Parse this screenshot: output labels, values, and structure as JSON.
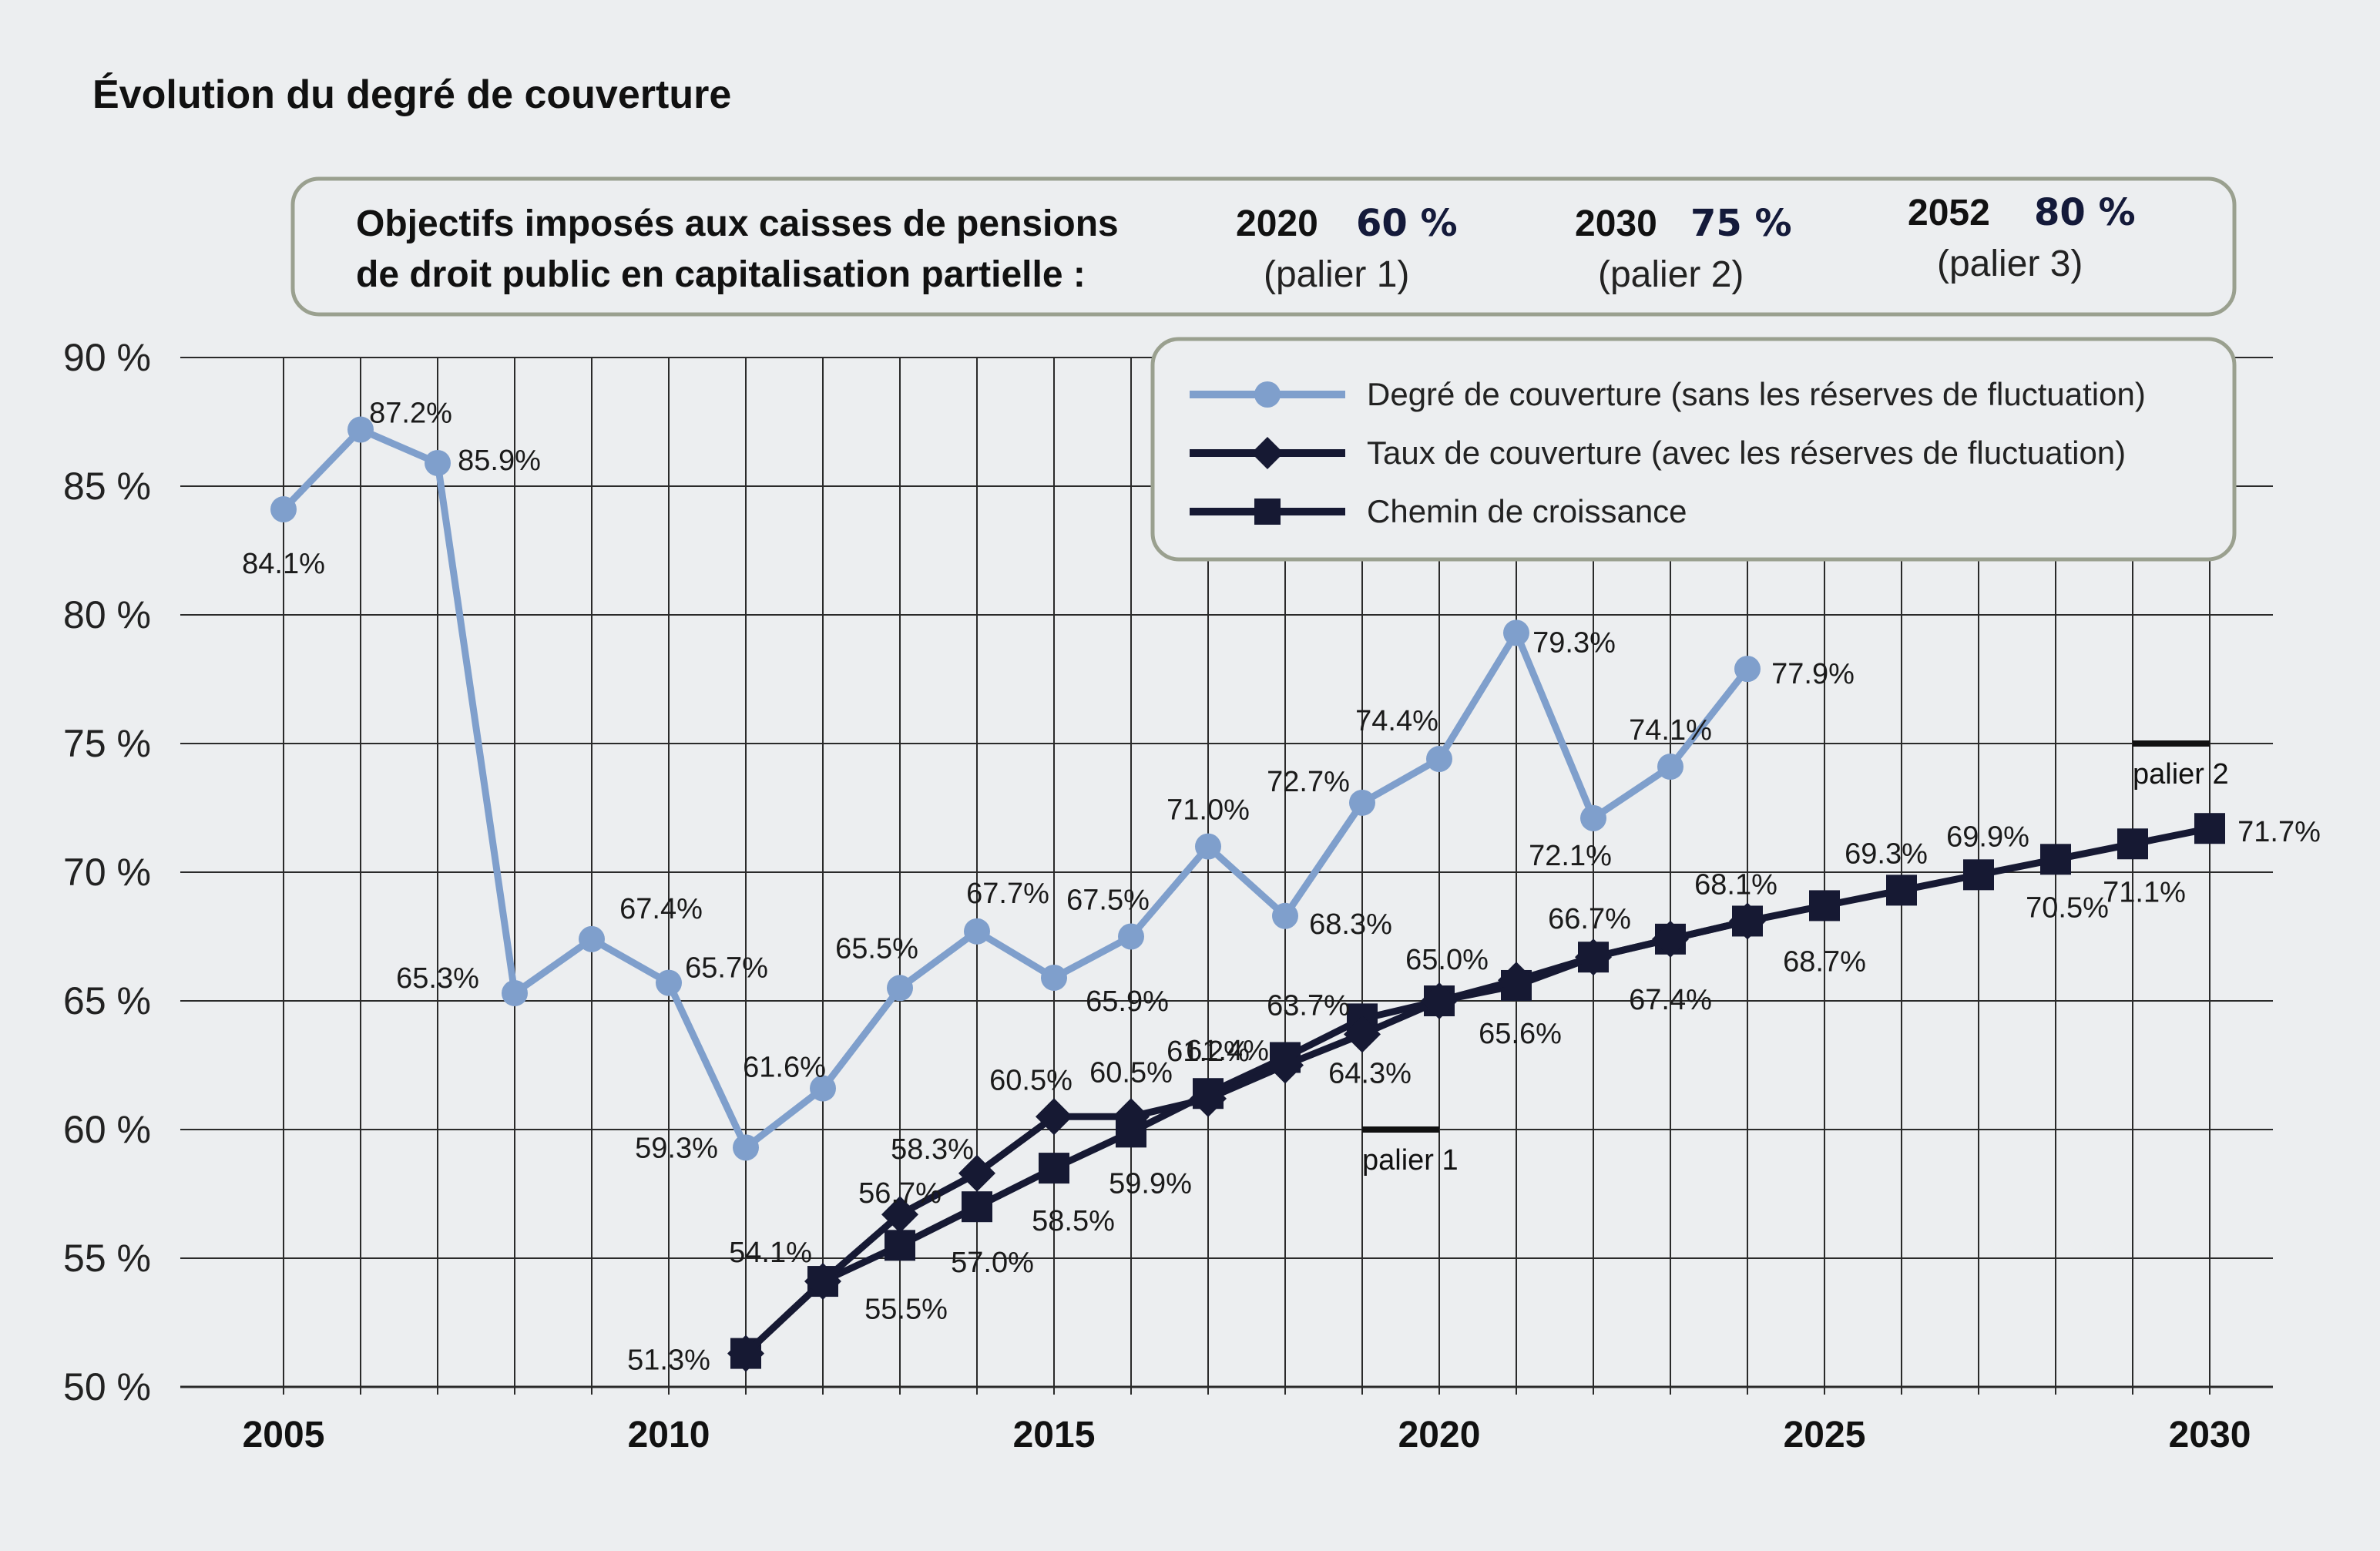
{
  "header": {
    "title": "Évolution du degré de couverture"
  },
  "objectives": {
    "text_line1": "Objectifs imposés aux caisses de pensions",
    "text_line2": "de droit public en capitalisation partielle :",
    "items": [
      {
        "year": "2020",
        "pct": "60 %",
        "sub": "(palier 1)"
      },
      {
        "year": "2030",
        "pct": "75 %",
        "sub": "(palier 2)"
      },
      {
        "year": "2052",
        "pct": "80 %",
        "sub": "(palier 3)"
      }
    ]
  },
  "legend": {
    "items": [
      {
        "label": "Degré de couverture (sans les réserves de fluctuation)",
        "marker": "circle",
        "color": "#7f9fcc"
      },
      {
        "label": "Taux de couverture (avec les réserves de fluctuation)",
        "marker": "diamond",
        "color": "#161933"
      },
      {
        "label": "Chemin de croissance",
        "marker": "square",
        "color": "#161933"
      }
    ]
  },
  "chart_data": {
    "type": "line",
    "title": "Évolution du degré de couverture",
    "xlabel": "",
    "ylabel": "",
    "xlim": [
      2004,
      2031
    ],
    "ylim": [
      50,
      90
    ],
    "grid": true,
    "legend_position": "top-right",
    "y_ticks": [
      {
        "value": 90,
        "label": "90 %"
      },
      {
        "value": 85,
        "label": "85 %"
      },
      {
        "value": 80,
        "label": "80 %"
      },
      {
        "value": 75,
        "label": "75 %"
      },
      {
        "value": 70,
        "label": "70 %"
      },
      {
        "value": 65,
        "label": "65 %"
      },
      {
        "value": 60,
        "label": "60 %"
      },
      {
        "value": 55,
        "label": "55 %"
      },
      {
        "value": 50,
        "label": "50 %"
      }
    ],
    "x_ticks": [
      {
        "value": 2005,
        "label": "2005"
      },
      {
        "value": 2010,
        "label": "2010"
      },
      {
        "value": 2015,
        "label": "2015"
      },
      {
        "value": 2020,
        "label": "2020"
      },
      {
        "value": 2025,
        "label": "2025"
      },
      {
        "value": 2030,
        "label": "2030"
      }
    ],
    "series": [
      {
        "name": "Degré de couverture (sans les réserves de fluctuation)",
        "color": "#7f9fcc",
        "marker": "circle",
        "points": [
          {
            "x": 2005,
            "y": 84.1,
            "label": "84.1%"
          },
          {
            "x": 2006,
            "y": 87.2,
            "label": "87.2%"
          },
          {
            "x": 2007,
            "y": 85.9,
            "label": "85.9%"
          },
          {
            "x": 2008,
            "y": 65.3,
            "label": "65.3%"
          },
          {
            "x": 2009,
            "y": 67.4,
            "label": "67.4%"
          },
          {
            "x": 2010,
            "y": 65.7,
            "label": "65.7%"
          },
          {
            "x": 2011,
            "y": 59.3,
            "label": "59.3%"
          },
          {
            "x": 2012,
            "y": 61.6,
            "label": "61.6%"
          },
          {
            "x": 2013,
            "y": 65.5,
            "label": "65.5%"
          },
          {
            "x": 2014,
            "y": 67.7,
            "label": "67.7%"
          },
          {
            "x": 2015,
            "y": 65.9,
            "label": "65.9%"
          },
          {
            "x": 2016,
            "y": 67.5,
            "label": "67.5%"
          },
          {
            "x": 2017,
            "y": 71.0,
            "label": "71.0%"
          },
          {
            "x": 2018,
            "y": 68.3,
            "label": "68.3%"
          },
          {
            "x": 2019,
            "y": 72.7,
            "label": "72.7%"
          },
          {
            "x": 2020,
            "y": 74.4,
            "label": "74.4%"
          },
          {
            "x": 2021,
            "y": 79.3,
            "label": "79.3%"
          },
          {
            "x": 2022,
            "y": 72.1,
            "label": "72.1%"
          },
          {
            "x": 2023,
            "y": 74.1,
            "label": "74.1%"
          },
          {
            "x": 2024,
            "y": 77.9,
            "label": "77.9%"
          }
        ]
      },
      {
        "name": "Taux de couverture (avec les réserves de fluctuation)",
        "color": "#161933",
        "marker": "diamond",
        "points": [
          {
            "x": 2011,
            "y": 51.3,
            "label": "51.3%"
          },
          {
            "x": 2012,
            "y": 54.1,
            "label": "54.1%"
          },
          {
            "x": 2013,
            "y": 56.7,
            "label": "56.7%"
          },
          {
            "x": 2014,
            "y": 58.3,
            "label": "58.3%"
          },
          {
            "x": 2015,
            "y": 60.5,
            "label": "60.5%"
          },
          {
            "x": 2016,
            "y": 60.5,
            "label": "60.5%"
          },
          {
            "x": 2017,
            "y": 61.2,
            "label": "61.2%"
          },
          {
            "x": 2018,
            "y": 62.5,
            "label": ""
          },
          {
            "x": 2019,
            "y": 63.7,
            "label": "63.7%"
          },
          {
            "x": 2020,
            "y": 65.0,
            "label": "65.0%"
          },
          {
            "x": 2021,
            "y": 65.8,
            "label": ""
          },
          {
            "x": 2022,
            "y": 66.7,
            "label": "66.7%"
          },
          {
            "x": 2023,
            "y": 67.4,
            "label": "67.4%"
          },
          {
            "x": 2024,
            "y": 68.1,
            "label": "68.1%"
          }
        ]
      },
      {
        "name": "Chemin de croissance",
        "color": "#161933",
        "marker": "square",
        "points": [
          {
            "x": 2011,
            "y": 51.3,
            "label": ""
          },
          {
            "x": 2012,
            "y": 54.1,
            "label": ""
          },
          {
            "x": 2013,
            "y": 55.5,
            "label": "55.5%"
          },
          {
            "x": 2014,
            "y": 57.0,
            "label": "57.0%"
          },
          {
            "x": 2015,
            "y": 58.5,
            "label": "58.5%"
          },
          {
            "x": 2016,
            "y": 59.9,
            "label": "59.9%"
          },
          {
            "x": 2017,
            "y": 61.4,
            "label": "61.4%"
          },
          {
            "x": 2018,
            "y": 62.8,
            "label": ""
          },
          {
            "x": 2019,
            "y": 64.3,
            "label": "64.3%"
          },
          {
            "x": 2020,
            "y": 65.0,
            "label": ""
          },
          {
            "x": 2021,
            "y": 65.6,
            "label": "65.6%"
          },
          {
            "x": 2022,
            "y": 66.7,
            "label": ""
          },
          {
            "x": 2023,
            "y": 67.4,
            "label": ""
          },
          {
            "x": 2024,
            "y": 68.1,
            "label": ""
          },
          {
            "x": 2025,
            "y": 68.7,
            "label": "68.7%"
          },
          {
            "x": 2026,
            "y": 69.3,
            "label": "69.3%"
          },
          {
            "x": 2027,
            "y": 69.9,
            "label": "69.9%"
          },
          {
            "x": 2028,
            "y": 70.5,
            "label": "70.5%"
          },
          {
            "x": 2029,
            "y": 71.1,
            "label": "71.1%"
          },
          {
            "x": 2030,
            "y": 71.7,
            "label": "71.7%"
          }
        ]
      }
    ],
    "annotations": [
      {
        "text": "palier 1",
        "x": 2019.5,
        "y": 60
      },
      {
        "text": "palier 2",
        "x": 2029.5,
        "y": 75
      }
    ]
  }
}
